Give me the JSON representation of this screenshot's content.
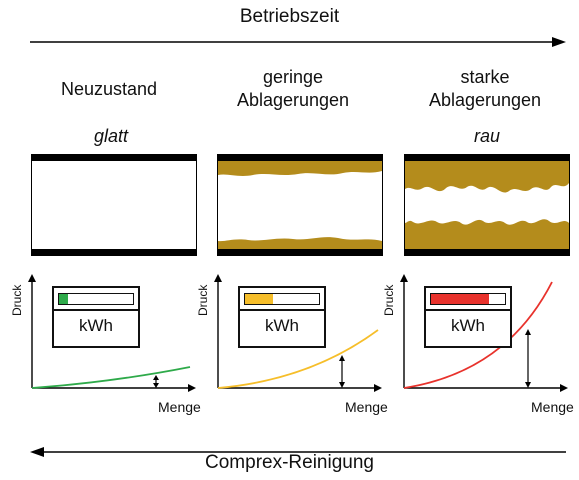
{
  "timeline": {
    "top_label": "Betriebszeit",
    "bottom_label": "Comprex-Reinigung"
  },
  "columns": [
    {
      "title_line1": "Neuzustand",
      "title_line2": "",
      "surface": "glatt",
      "fill_fraction": 0.12,
      "fill_color": "#2eaa4a",
      "curve_color": "#2eaa4a"
    },
    {
      "title_line1": "geringe",
      "title_line2": "Ablagerungen",
      "surface": "",
      "fill_fraction": 0.38,
      "fill_color": "#f6be2a",
      "curve_color": "#f6be2a"
    },
    {
      "title_line1": "starke",
      "title_line2": "Ablagerungen",
      "surface": "rau",
      "fill_fraction": 0.78,
      "fill_color": "#e8322c",
      "curve_color": "#e8322c"
    }
  ],
  "graph_labels": {
    "y": "Druck",
    "x": "Menge"
  },
  "meter_unit": "kWh",
  "colors": {
    "deposit": "#b48c1c"
  }
}
